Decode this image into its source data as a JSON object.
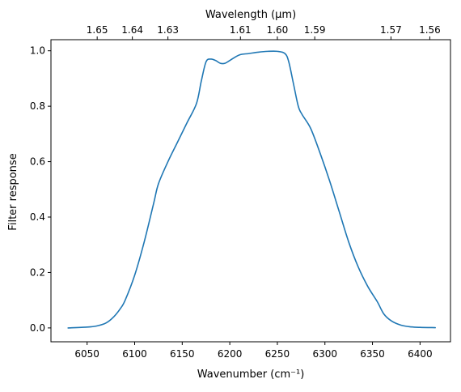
{
  "chart_data": {
    "type": "line",
    "title": "",
    "xlabel": "Wavenumber (cm⁻¹)",
    "ylabel": "Filter response",
    "top_xlabel": "Wavelength (μm)",
    "xlim": [
      6012,
      6432
    ],
    "ylim": [
      -0.05,
      1.04
    ],
    "x_ticks": [
      6050,
      6100,
      6150,
      6200,
      6250,
      6300,
      6350,
      6400
    ],
    "y_ticks": [
      0.0,
      0.2,
      0.4,
      0.6,
      0.8,
      1.0
    ],
    "top_ticks": [
      {
        "label": "1.65",
        "value": 1.65
      },
      {
        "label": "1.64",
        "value": 1.64
      },
      {
        "label": "1.63",
        "value": 1.63
      },
      {
        "label": "1.61",
        "value": 1.61
      },
      {
        "label": "1.60",
        "value": 1.6
      },
      {
        "label": "1.59",
        "value": 1.59
      },
      {
        "label": "1.57",
        "value": 1.57
      },
      {
        "label": "1.56",
        "value": 1.56
      }
    ],
    "grid": false,
    "legend": "none",
    "series": [
      {
        "color": "#1f77b4",
        "x": [
          6030,
          6050,
          6060,
          6070,
          6078,
          6085,
          6090,
          6100,
          6110,
          6120,
          6125,
          6135,
          6145,
          6155,
          6165,
          6170,
          6175,
          6180,
          6185,
          6190,
          6195,
          6200,
          6210,
          6220,
          6230,
          6240,
          6250,
          6258,
          6262,
          6267,
          6272,
          6276,
          6285,
          6295,
          6305,
          6315,
          6325,
          6335,
          6345,
          6355,
          6362,
          6370,
          6380,
          6390,
          6400,
          6416
        ],
        "y": [
          0.0,
          0.003,
          0.007,
          0.018,
          0.04,
          0.07,
          0.1,
          0.19,
          0.31,
          0.45,
          0.52,
          0.6,
          0.67,
          0.74,
          0.81,
          0.89,
          0.96,
          0.97,
          0.965,
          0.955,
          0.955,
          0.965,
          0.985,
          0.99,
          0.995,
          0.998,
          0.998,
          0.99,
          0.96,
          0.88,
          0.8,
          0.77,
          0.72,
          0.63,
          0.53,
          0.42,
          0.31,
          0.22,
          0.15,
          0.095,
          0.05,
          0.025,
          0.01,
          0.004,
          0.002,
          0.001
        ]
      }
    ]
  }
}
